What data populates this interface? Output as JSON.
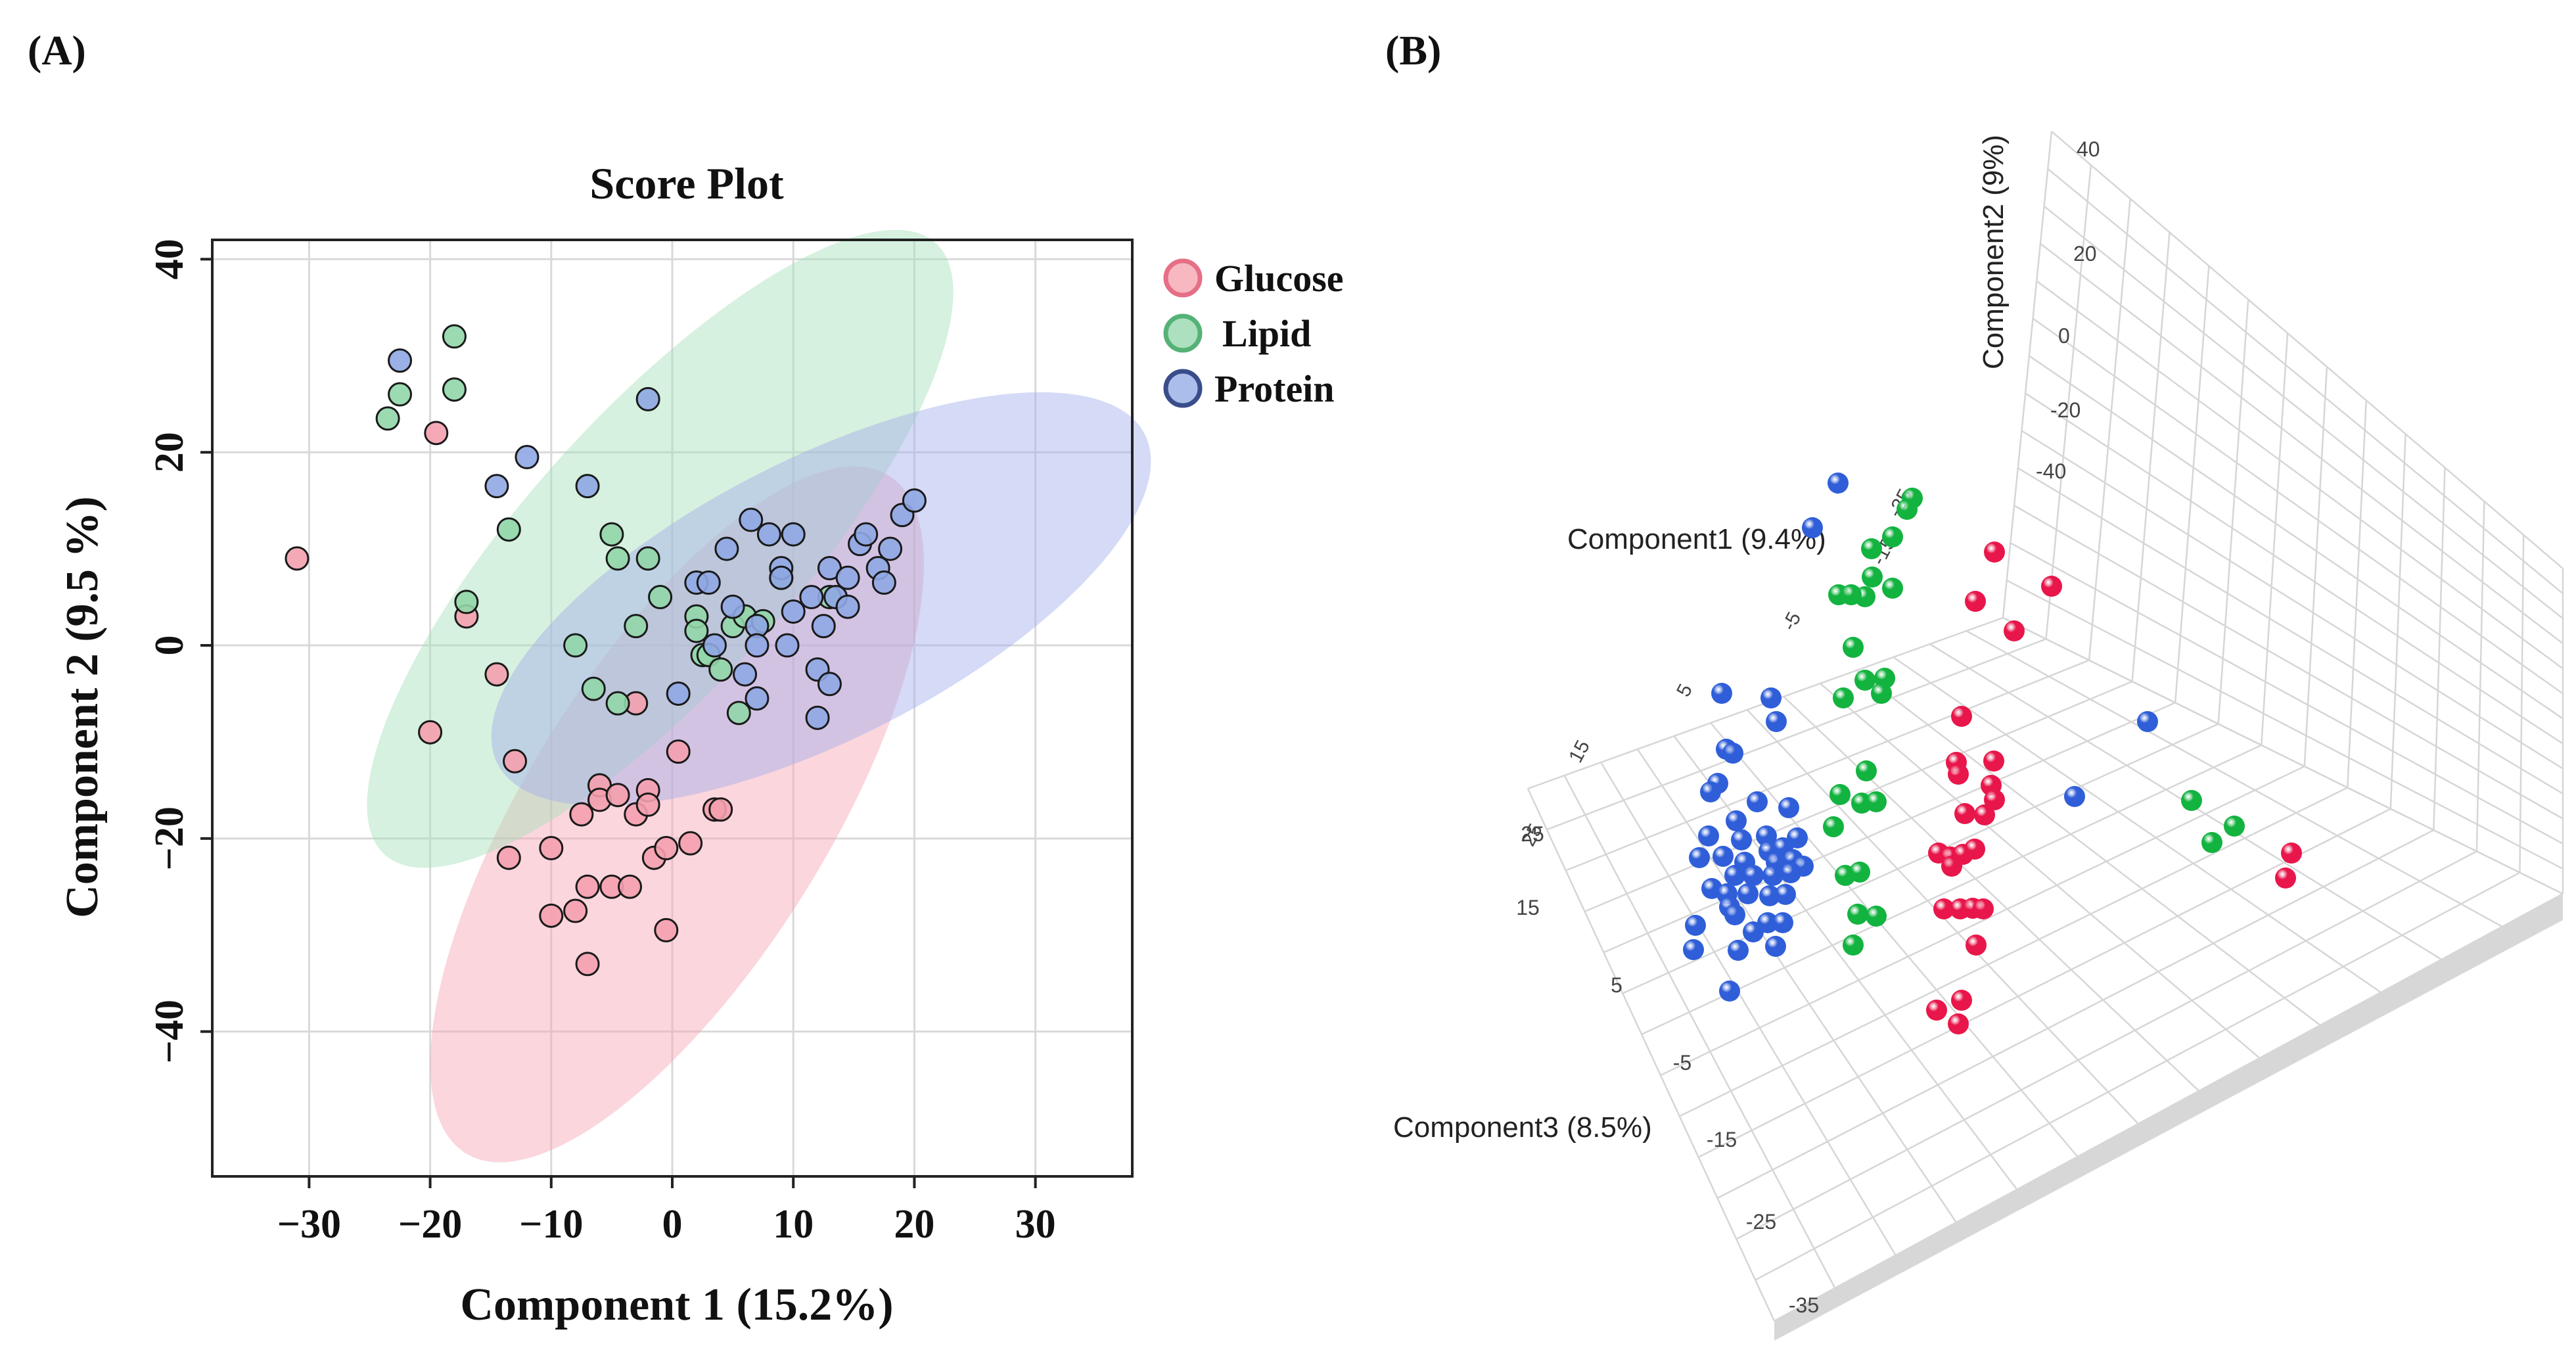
{
  "panel_a": {
    "label": "(A)",
    "chart_data": {
      "type": "scatter",
      "title": "Score Plot",
      "xlabel": "Component 1 (15.2%)",
      "ylabel": "Component 2 (9.5 %)",
      "xlim": [
        -38,
        38
      ],
      "ylim": [
        -55,
        42
      ],
      "xticks": [
        -30,
        -20,
        -10,
        0,
        10,
        20,
        30
      ],
      "yticks": [
        -40,
        -20,
        0,
        20,
        40
      ],
      "xtick_labels": [
        "−30",
        "−20",
        "−10",
        "0",
        "10",
        "20",
        "30"
      ],
      "ytick_labels": [
        "−40",
        "−20",
        "0",
        "20",
        "40"
      ],
      "grid": true,
      "legend": "top-right outside",
      "series": [
        {
          "name": "Glucose",
          "color": "#f4a0ae",
          "stroke": "#e56f86",
          "ellipse": {
            "cx": 0.4,
            "cy": -17.5,
            "rx": 33,
            "ry": 15.5,
            "angle_deg": -58,
            "fill": "#f7a3b4"
          },
          "points": [
            [
              -31,
              9
            ],
            [
              -19.5,
              22
            ],
            [
              -17,
              3
            ],
            [
              -14.5,
              -3
            ],
            [
              -20,
              -9
            ],
            [
              -13,
              -12
            ],
            [
              -13.5,
              -22
            ],
            [
              -10,
              -21
            ],
            [
              -10,
              -28
            ],
            [
              -8,
              -27.5
            ],
            [
              -7.5,
              -17.5
            ],
            [
              -7,
              -25
            ],
            [
              -7,
              -33
            ],
            [
              -6,
              -14.5
            ],
            [
              -6,
              -16
            ],
            [
              -5,
              -25
            ],
            [
              -4.5,
              -15.5
            ],
            [
              -3.5,
              -25
            ],
            [
              -3,
              -6
            ],
            [
              -3,
              -17.5
            ],
            [
              -2,
              -15
            ],
            [
              -2,
              -16.5
            ],
            [
              -1.5,
              -22
            ],
            [
              -0.5,
              -29.5
            ],
            [
              -0.5,
              -21
            ],
            [
              0.5,
              -11
            ],
            [
              1.5,
              -20.5
            ],
            [
              3.5,
              -17
            ],
            [
              4,
              -17
            ]
          ]
        },
        {
          "name": "Lipid",
          "color": "#91d6a8",
          "stroke": "#55b277",
          "ellipse": {
            "cx": -1,
            "cy": 10,
            "rx": 34,
            "ry": 14,
            "angle_deg": -48,
            "fill": "#a5e0b8"
          },
          "points": [
            [
              -23.5,
              23.5
            ],
            [
              -22.5,
              26
            ],
            [
              -18,
              32
            ],
            [
              -18,
              26.5
            ],
            [
              -17,
              4.5
            ],
            [
              -13.5,
              12
            ],
            [
              -8,
              0
            ],
            [
              -6.5,
              -4.5
            ],
            [
              -5,
              11.5
            ],
            [
              -4.5,
              -6
            ],
            [
              -4.5,
              9
            ],
            [
              -3,
              2
            ],
            [
              -2,
              9
            ],
            [
              -1,
              5
            ],
            [
              2,
              3
            ],
            [
              2,
              1.5
            ],
            [
              2.5,
              -1
            ],
            [
              3,
              -1
            ],
            [
              4,
              -2.5
            ],
            [
              5,
              2
            ],
            [
              5.5,
              -7
            ],
            [
              6,
              3
            ],
            [
              7.5,
              2.5
            ],
            [
              9,
              7
            ],
            [
              13,
              5
            ]
          ]
        },
        {
          "name": "Protein",
          "color": "#8fa7e3",
          "stroke": "#3a4d8a",
          "ellipse": {
            "cx": 12.3,
            "cy": 4.8,
            "rx": 30,
            "ry": 14.5,
            "angle_deg": -27,
            "fill": "#a2acec"
          },
          "points": [
            [
              -22.5,
              29.5
            ],
            [
              -12,
              19.5
            ],
            [
              -14.5,
              16.5
            ],
            [
              -7,
              16.5
            ],
            [
              -2,
              25.5
            ],
            [
              0.5,
              -5
            ],
            [
              2,
              6.5
            ],
            [
              3,
              6.5
            ],
            [
              3.5,
              0
            ],
            [
              4.5,
              10
            ],
            [
              5,
              4
            ],
            [
              6,
              -3
            ],
            [
              6.5,
              13
            ],
            [
              7,
              2
            ],
            [
              7,
              0
            ],
            [
              7,
              -5.5
            ],
            [
              8,
              11.5
            ],
            [
              9,
              8
            ],
            [
              9,
              7
            ],
            [
              9.5,
              0
            ],
            [
              10,
              11.5
            ],
            [
              10,
              3.5
            ],
            [
              11.5,
              5
            ],
            [
              12,
              -2.5
            ],
            [
              12,
              -7.5
            ],
            [
              12.5,
              2
            ],
            [
              13,
              -4
            ],
            [
              13,
              8
            ],
            [
              13.5,
              5
            ],
            [
              14.5,
              4
            ],
            [
              14.5,
              7
            ],
            [
              15.5,
              10.5
            ],
            [
              16,
              11.5
            ],
            [
              17,
              8
            ],
            [
              17.5,
              6.5
            ],
            [
              18,
              10
            ],
            [
              19,
              13.5
            ],
            [
              20,
              15
            ]
          ]
        }
      ]
    }
  },
  "panel_b": {
    "label": "(B)",
    "chart_data": {
      "type": "scatter",
      "projection": "3d",
      "axes": {
        "component1": {
          "label": "Component1 (9.4%)",
          "ticks": [
            "-25",
            "-15",
            "-5",
            "5",
            "15",
            "25"
          ]
        },
        "component2": {
          "label": "Component2 (9%)",
          "ticks": [
            "40",
            "20",
            "0",
            "-20",
            "-40"
          ]
        },
        "component3": {
          "label": "Component3 (8.5%)",
          "ticks": [
            "25",
            "15",
            "5",
            "-5",
            "-15",
            "-25",
            "-35"
          ]
        }
      },
      "series_colors": {
        "blue": "#2f5ed8",
        "green": "#12b33f",
        "red": "#e8164a"
      },
      "series": [
        {
          "name": "blue",
          "points_view": [
            [
              2797,
              735
            ],
            [
              2758,
              803
            ],
            [
              2620,
              1055
            ],
            [
              2695,
              1062
            ],
            [
              2703,
              1098
            ],
            [
              2627,
              1140
            ],
            [
              2637,
              1146
            ],
            [
              2614,
              1192
            ],
            [
              2603,
              1205
            ],
            [
              2674,
              1220
            ],
            [
              2722,
              1229
            ],
            [
              2642,
              1249
            ],
            [
              2600,
              1272
            ],
            [
              2650,
              1278
            ],
            [
              2688,
              1272
            ],
            [
              2692,
              1295
            ],
            [
              2713,
              1290
            ],
            [
              2735,
              1275
            ],
            [
              2586,
              1305
            ],
            [
              2622,
              1303
            ],
            [
              2655,
              1312
            ],
            [
              2703,
              1312
            ],
            [
              2728,
              1308
            ],
            [
              2744,
              1318
            ],
            [
              2640,
              1332
            ],
            [
              2668,
              1332
            ],
            [
              2698,
              1332
            ],
            [
              2725,
              1328
            ],
            [
              2605,
              1352
            ],
            [
              2628,
              1360
            ],
            [
              2660,
              1360
            ],
            [
              2693,
              1363
            ],
            [
              2717,
              1361
            ],
            [
              2632,
              1380
            ],
            [
              2580,
              1408
            ],
            [
              2640,
              1392
            ],
            [
              2690,
              1404
            ],
            [
              2713,
              1404
            ],
            [
              2668,
              1418
            ],
            [
              2577,
              1445
            ],
            [
              2645,
              1446
            ],
            [
              2702,
              1440
            ],
            [
              2632,
              1508
            ],
            [
              3268,
              1098
            ],
            [
              3157,
              1212
            ]
          ]
        },
        {
          "name": "green",
          "points_view": [
            [
              2910,
              758
            ],
            [
              2902,
              775
            ],
            [
              2880,
              817
            ],
            [
              2848,
              835
            ],
            [
              2849,
              878
            ],
            [
              2838,
              908
            ],
            [
              2798,
              905
            ],
            [
              2817,
              905
            ],
            [
              2880,
              895
            ],
            [
              2820,
              985
            ],
            [
              2838,
              1035
            ],
            [
              2868,
              1032
            ],
            [
              2863,
              1055
            ],
            [
              2805,
              1062
            ],
            [
              2800,
              1209
            ],
            [
              2833,
              1222
            ],
            [
              2855,
              1220
            ],
            [
              2840,
              1173
            ],
            [
              2790,
              1258
            ],
            [
              2808,
              1332
            ],
            [
              2830,
              1327
            ],
            [
              2827,
              1391
            ],
            [
              2855,
              1394
            ],
            [
              2820,
              1438
            ],
            [
              3335,
              1218
            ],
            [
              3400,
              1257
            ],
            [
              3366,
              1282
            ]
          ]
        },
        {
          "name": "red",
          "points_view": [
            [
              3035,
              840
            ],
            [
              3122,
              892
            ],
            [
              3006,
              915
            ],
            [
              3065,
              960
            ],
            [
              2985,
              1090
            ],
            [
              2977,
              1160
            ],
            [
              3034,
              1158
            ],
            [
              2980,
              1178
            ],
            [
              3030,
              1195
            ],
            [
              3035,
              1217
            ],
            [
              2990,
              1238
            ],
            [
              3020,
              1240
            ],
            [
              2950,
              1298
            ],
            [
              2968,
              1304
            ],
            [
              2987,
              1300
            ],
            [
              3005,
              1292
            ],
            [
              2970,
              1318
            ],
            [
              2958,
              1383
            ],
            [
              2983,
              1383
            ],
            [
              3002,
              1382
            ],
            [
              3018,
              1383
            ],
            [
              3007,
              1438
            ],
            [
              2947,
              1537
            ],
            [
              2985,
              1522
            ],
            [
              2980,
              1558
            ],
            [
              3487,
              1298
            ],
            [
              3478,
              1336
            ]
          ]
        }
      ]
    }
  }
}
